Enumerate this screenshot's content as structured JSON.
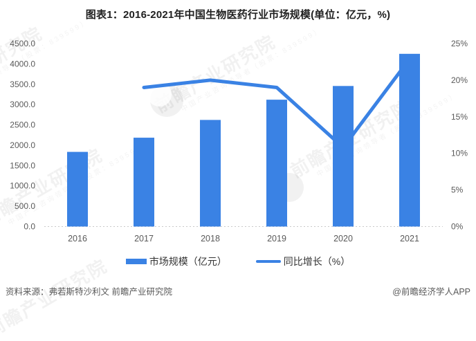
{
  "title": "图表1：2016-2021年中国生物医药行业市场规模(单位：亿元，%)",
  "chart_data": {
    "type": "bar+line",
    "categories": [
      "2016",
      "2017",
      "2018",
      "2019",
      "2020",
      "2021"
    ],
    "series": [
      {
        "name": "市场规模（亿元）",
        "type": "bar",
        "axis": "left",
        "color": "#3a82e4",
        "values": [
          1836,
          2185,
          2622,
          3120,
          3457,
          4248
        ]
      },
      {
        "name": "同比增长（%）",
        "type": "line",
        "axis": "right",
        "color": "#3a82e4",
        "values": [
          null,
          19.0,
          20.0,
          19.0,
          10.8,
          22.9
        ]
      }
    ],
    "left_axis": {
      "min": 0,
      "max": 4500,
      "tick_values": [
        0,
        500,
        1000,
        1500,
        2000,
        2500,
        3000,
        3500,
        4000,
        4500
      ],
      "tick_labels": [
        "0.0",
        "500.0",
        "1000.0",
        "1500.0",
        "2000.0",
        "2500.0",
        "3000.0",
        "3500.0",
        "4000.0",
        "4500.0"
      ]
    },
    "right_axis": {
      "min": 0,
      "max": 25,
      "tick_values": [
        0,
        5,
        10,
        15,
        20,
        25
      ],
      "tick_labels": [
        "0%",
        "5%",
        "10%",
        "15%",
        "20%",
        "25%"
      ]
    },
    "grid": "baseline-only",
    "legend_position": "bottom"
  },
  "legend": [
    {
      "label": "市场规模（亿元）",
      "marker": "bar"
    },
    {
      "label": "同比增长（%）",
      "marker": "line"
    }
  ],
  "footer": {
    "source": "资料来源：弗若斯特沙利文 前瞻产业研究院",
    "credit": "@前瞻经济学人APP"
  },
  "watermark": {
    "brand": "前瞻产业研究院",
    "tagline": "中国产业咨询领导者（股票：839599）"
  },
  "colors": {
    "primary": "#3a82e4",
    "axis_text": "#595959",
    "title_text": "#1f1f1f",
    "baseline": "#c9c9c9"
  }
}
